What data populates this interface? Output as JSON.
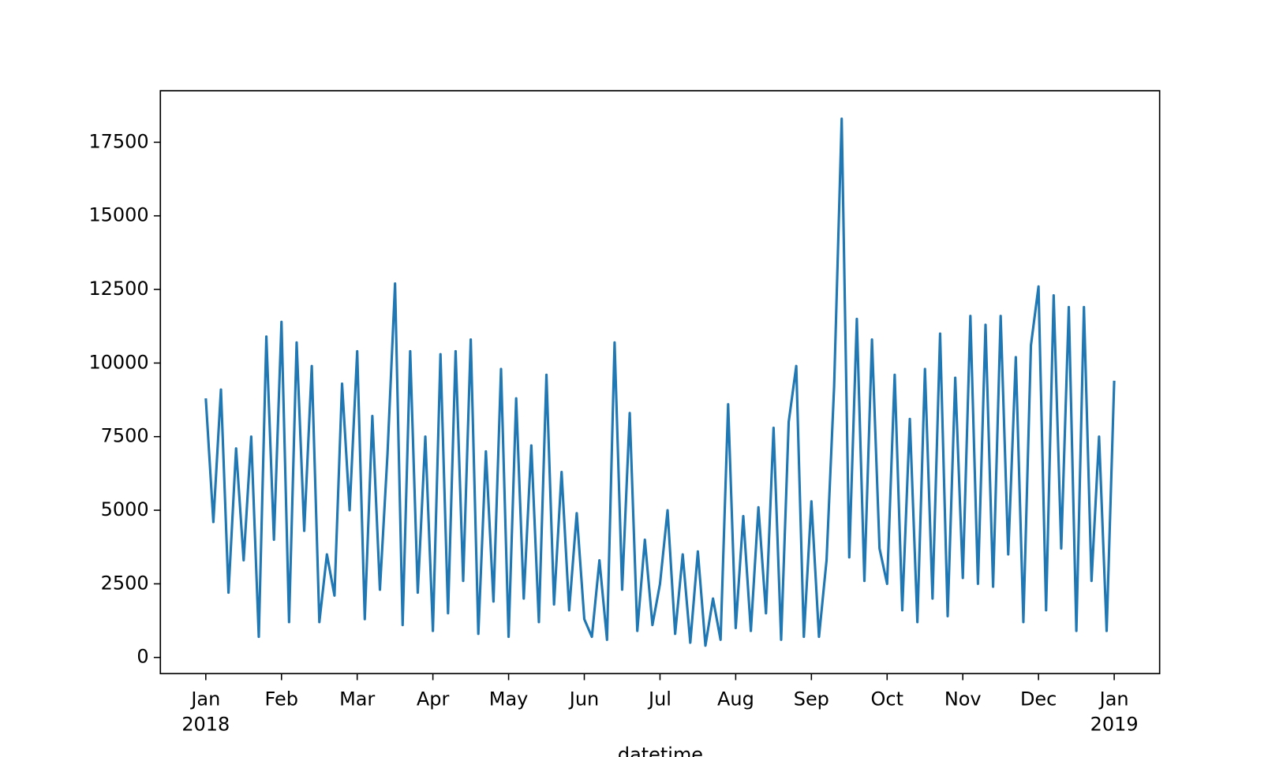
{
  "chart_data": {
    "type": "line",
    "x_label": "datetime",
    "x": [
      0,
      0.1,
      0.2,
      0.3,
      0.4,
      0.5,
      0.6,
      0.7,
      0.8,
      0.9,
      1,
      1.1,
      1.2,
      1.3,
      1.4,
      1.5,
      1.6,
      1.7,
      1.8,
      1.9,
      2,
      2.1,
      2.2,
      2.3,
      2.4,
      2.5,
      2.6,
      2.7,
      2.8,
      2.9,
      3,
      3.1,
      3.2,
      3.3,
      3.4,
      3.5,
      3.6,
      3.7,
      3.8,
      3.9,
      4,
      4.1,
      4.2,
      4.3,
      4.4,
      4.5,
      4.6,
      4.7,
      4.8,
      4.9,
      5,
      5.1,
      5.2,
      5.3,
      5.4,
      5.5,
      5.6,
      5.7,
      5.8,
      5.9,
      6,
      6.1,
      6.2,
      6.3,
      6.4,
      6.5,
      6.6,
      6.7,
      6.8,
      6.9,
      7,
      7.1,
      7.2,
      7.3,
      7.4,
      7.5,
      7.6,
      7.7,
      7.8,
      7.9,
      8,
      8.1,
      8.2,
      8.3,
      8.4,
      8.5,
      8.6,
      8.7,
      8.8,
      8.9,
      9,
      9.1,
      9.2,
      9.3,
      9.4,
      9.5,
      9.6,
      9.7,
      9.8,
      9.9,
      10,
      10.1,
      10.2,
      10.3,
      10.4,
      10.5,
      10.6,
      10.7,
      10.8,
      10.9,
      11,
      11.1,
      11.2,
      11.3,
      11.4,
      11.5,
      11.6,
      11.7,
      11.8,
      11.9,
      12
    ],
    "series": [
      {
        "color": "#1f77b4",
        "values": [
          8800,
          4600,
          9100,
          2200,
          7100,
          3300,
          7500,
          700,
          10900,
          4000,
          11400,
          1200,
          10700,
          4300,
          9900,
          1200,
          3500,
          2100,
          9300,
          5000,
          10400,
          1300,
          8200,
          2300,
          6900,
          12700,
          1100,
          10400,
          2200,
          7500,
          900,
          10300,
          1500,
          10400,
          2600,
          10800,
          800,
          7000,
          1900,
          9800,
          700,
          8800,
          2000,
          7200,
          1200,
          9600,
          1800,
          6300,
          1600,
          4900,
          1300,
          700,
          3300,
          600,
          10700,
          2300,
          8300,
          900,
          4000,
          1100,
          2500,
          5000,
          800,
          3500,
          500,
          3600,
          400,
          2000,
          600,
          8600,
          1000,
          4800,
          900,
          5100,
          1500,
          7800,
          600,
          8000,
          9900,
          700,
          5300,
          700,
          3300,
          9200,
          18300,
          3400,
          11500,
          2600,
          10800,
          3700,
          2500,
          9600,
          1600,
          8100,
          1200,
          9800,
          2000,
          11000,
          1400,
          9500,
          2700,
          11600,
          2500,
          11300,
          2400,
          11600,
          3500,
          10200,
          1200,
          10600,
          12600,
          1600,
          12300,
          3700,
          11900,
          900,
          11900,
          2600,
          7500,
          900,
          9400
        ]
      }
    ],
    "xlim": [
      -0.6,
      12.6
    ],
    "xticks": [
      {
        "value": 0,
        "label": "Jan 2018"
      },
      {
        "value": 1,
        "label": "Feb"
      },
      {
        "value": 2,
        "label": "Mar"
      },
      {
        "value": 3,
        "label": "Apr"
      },
      {
        "value": 4,
        "label": "May"
      },
      {
        "value": 5,
        "label": "Jun"
      },
      {
        "value": 6,
        "label": "Jul"
      },
      {
        "value": 7,
        "label": "Aug"
      },
      {
        "value": 8,
        "label": "Sep"
      },
      {
        "value": 9,
        "label": "Oct"
      },
      {
        "value": 10,
        "label": "Nov"
      },
      {
        "value": 11,
        "label": "Dec"
      },
      {
        "value": 12,
        "label": "Jan 2019"
      }
    ],
    "ylim": [
      -550,
      19250
    ],
    "yticks": [
      0,
      2500,
      5000,
      7500,
      10000,
      12500,
      15000,
      17500
    ]
  }
}
